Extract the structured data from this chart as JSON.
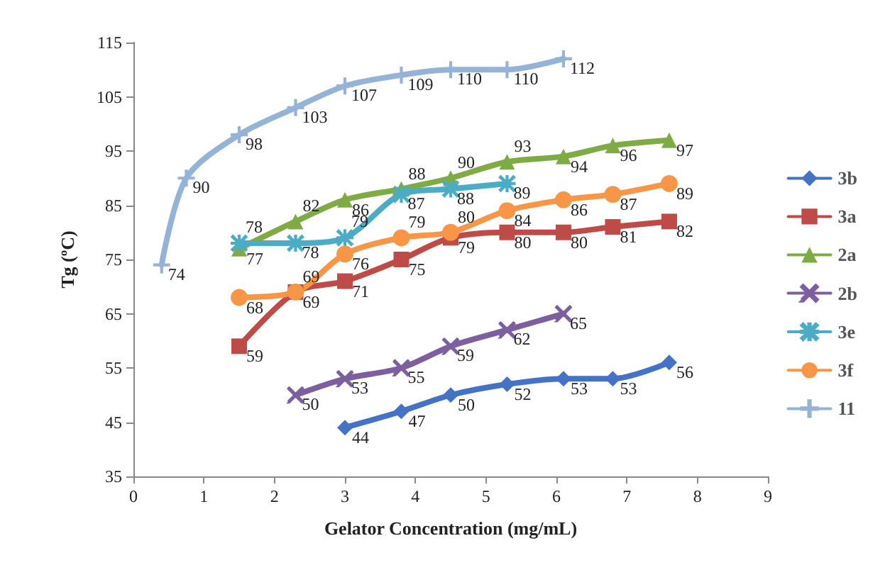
{
  "chart_data": {
    "type": "line",
    "xlabel": "Gelator Concentration (mg/mL)",
    "ylabel": "Tg (ºC)",
    "xlim": [
      0,
      9
    ],
    "xticks": [
      0,
      1,
      2,
      3,
      4,
      5,
      6,
      7,
      8,
      9
    ],
    "ylim": [
      35,
      115
    ],
    "yticks": [
      35,
      45,
      55,
      65,
      75,
      85,
      95,
      105,
      115
    ],
    "grid": false,
    "legend": "right",
    "data_labels": true,
    "line_style": "solid",
    "series": [
      {
        "name": "3b",
        "color": "#4472c4",
        "marker": "diamond",
        "x": [
          3,
          3.8,
          4.5,
          5.3,
          6.1,
          6.8,
          7.6
        ],
        "values": [
          44,
          47,
          50,
          52,
          53,
          53,
          56
        ]
      },
      {
        "name": "3a",
        "color": "#be4b48",
        "marker": "square",
        "x": [
          1.5,
          2.3,
          3,
          3.8,
          4.5,
          5.3,
          6.1,
          6.8,
          7.6
        ],
        "values": [
          59,
          69,
          71,
          75,
          79,
          80,
          80,
          81,
          82
        ]
      },
      {
        "name": "2a",
        "color": "#7fab45",
        "marker": "triangle",
        "x": [
          1.5,
          2.3,
          3,
          3.8,
          4.5,
          5.3,
          6.1,
          6.8,
          7.6
        ],
        "values": [
          77,
          82,
          86,
          88,
          90,
          93,
          94,
          96,
          97
        ]
      },
      {
        "name": "2b",
        "color": "#7d5fa0",
        "marker": "cross",
        "x": [
          2.3,
          3,
          3.8,
          4.5,
          5.3,
          6.1
        ],
        "values": [
          50,
          53,
          55,
          59,
          62,
          65
        ]
      },
      {
        "name": "3e",
        "color": "#4bacc6",
        "marker": "star",
        "x": [
          1.5,
          2.3,
          3,
          3.8,
          4.5,
          5.3
        ],
        "values": [
          78,
          78,
          79,
          87,
          88,
          89
        ]
      },
      {
        "name": "3f",
        "color": "#f79646",
        "marker": "circle",
        "x": [
          1.5,
          2.3,
          3,
          3.8,
          4.5,
          5.3,
          6.1,
          6.8,
          7.6
        ],
        "values": [
          68,
          69,
          76,
          79,
          80,
          84,
          86,
          87,
          89
        ]
      },
      {
        "name": "11",
        "color": "#95b3d7",
        "marker": "plus",
        "x": [
          0.4,
          0.75,
          1.5,
          2.3,
          3,
          3.8,
          4.5,
          5.3,
          6.1
        ],
        "values": [
          74,
          90,
          98,
          103,
          107,
          109,
          110,
          110,
          112
        ]
      }
    ]
  }
}
